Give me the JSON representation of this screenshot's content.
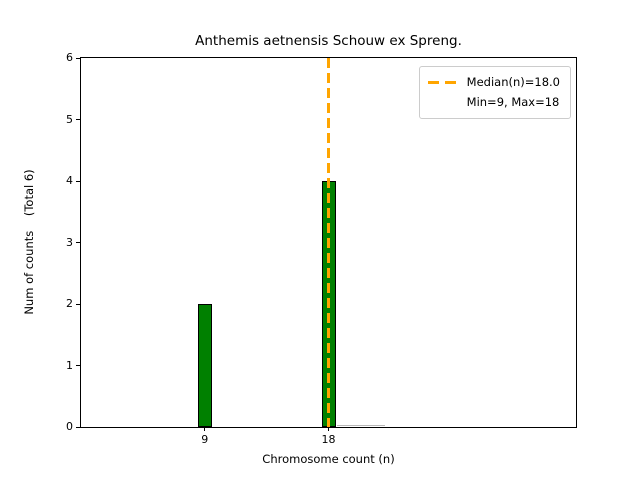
{
  "chart_data": {
    "type": "bar",
    "title": "Anthemis aetnensis Schouw ex Spreng.",
    "xlabel": "Chromosome count (n)",
    "ylabel": "Num of counts    (Total 6)",
    "categories": [
      9,
      18
    ],
    "values": [
      2,
      4
    ],
    "total_counts": 6,
    "xlim": [
      0,
      36
    ],
    "ylim": [
      0,
      6
    ],
    "xticks": [
      9,
      18
    ],
    "yticks": [
      0,
      1,
      2,
      3,
      4,
      5,
      6
    ],
    "bar_width_units": 1,
    "grid": false,
    "colors": {
      "bar_fill": "#008000",
      "bar_edge": "#000000",
      "median_line": "#FFA500",
      "legend_border": "#cccccc",
      "text": "#000000"
    },
    "median": {
      "value": 18.0,
      "label": "Median(n)=18.0"
    },
    "stats": {
      "min": 9,
      "max": 18,
      "label": "Min=9, Max=18"
    },
    "legend_position": "upper right"
  }
}
